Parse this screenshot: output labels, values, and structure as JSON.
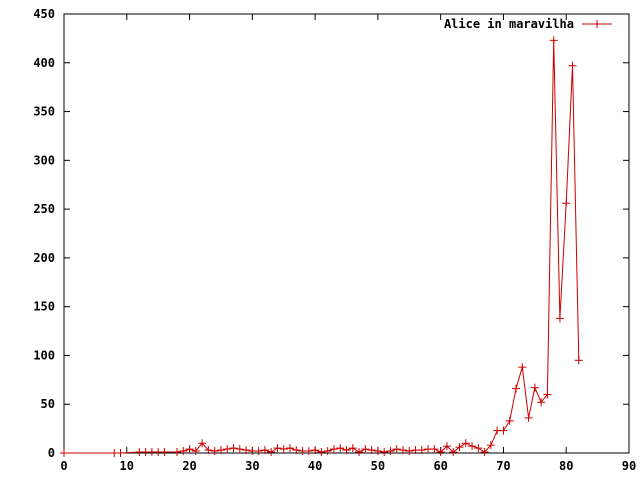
{
  "chart_data": {
    "type": "line",
    "title": "",
    "xlabel": "",
    "ylabel": "",
    "xlim": [
      0,
      90
    ],
    "ylim": [
      0,
      450
    ],
    "x_ticks": [
      0,
      10,
      20,
      30,
      40,
      50,
      60,
      70,
      80,
      90
    ],
    "y_ticks": [
      0,
      50,
      100,
      150,
      200,
      250,
      300,
      350,
      400,
      450
    ],
    "grid": false,
    "legend_position": "top-right",
    "series": [
      {
        "name": "Alice in maravilha",
        "color": "#cc0000",
        "marker": "plus",
        "x": [
          0,
          8,
          9,
          12,
          13,
          14,
          15,
          16,
          18,
          19,
          20,
          21,
          22,
          23,
          24,
          25,
          26,
          27,
          28,
          29,
          30,
          31,
          32,
          33,
          34,
          35,
          36,
          37,
          38,
          39,
          40,
          41,
          42,
          43,
          44,
          45,
          46,
          47,
          48,
          49,
          50,
          51,
          52,
          53,
          54,
          55,
          56,
          57,
          58,
          59,
          60,
          61,
          62,
          63,
          64,
          65,
          66,
          67,
          68,
          69,
          70,
          71,
          72,
          73,
          74,
          75,
          76,
          77,
          78,
          79,
          80,
          81,
          82
        ],
        "y": [
          0,
          0,
          0,
          1,
          1,
          1,
          1,
          1,
          1,
          2,
          4,
          2,
          10,
          3,
          2,
          3,
          4,
          5,
          4,
          3,
          2,
          2,
          3,
          1,
          5,
          4,
          5,
          3,
          2,
          2,
          3,
          1,
          2,
          4,
          5,
          3,
          5,
          1,
          4,
          3,
          2,
          1,
          2,
          4,
          3,
          2,
          3,
          3,
          4,
          4,
          1,
          7,
          1,
          6,
          10,
          7,
          5,
          1,
          8,
          23,
          23,
          33,
          66,
          88,
          36,
          67,
          52,
          60,
          423,
          138,
          256,
          397,
          95
        ]
      }
    ]
  }
}
